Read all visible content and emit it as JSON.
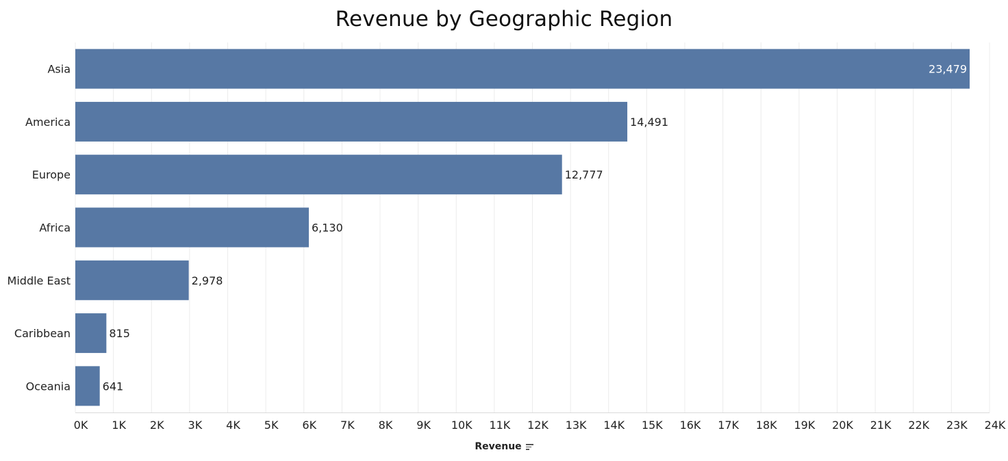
{
  "chart_data": {
    "type": "bar",
    "orientation": "horizontal",
    "title": "Revenue by Geographic Region",
    "xlabel": "Revenue",
    "ylabel": "",
    "categories": [
      "Asia",
      "America",
      "Europe",
      "Africa",
      "Middle East",
      "Caribbean",
      "Oceania"
    ],
    "values": [
      23479,
      14491,
      12777,
      6130,
      2978,
      815,
      641
    ],
    "value_labels": [
      "23,479",
      "14,491",
      "12,777",
      "6,130",
      "2,978",
      "815",
      "641"
    ],
    "xlim": [
      0,
      24000
    ],
    "x_ticks": [
      0,
      1000,
      2000,
      3000,
      4000,
      5000,
      6000,
      7000,
      8000,
      9000,
      10000,
      11000,
      12000,
      13000,
      14000,
      15000,
      16000,
      17000,
      18000,
      19000,
      20000,
      21000,
      22000,
      23000,
      24000
    ],
    "x_tick_labels": [
      "0K",
      "1K",
      "2K",
      "3K",
      "4K",
      "5K",
      "6K",
      "7K",
      "8K",
      "9K",
      "10K",
      "11K",
      "12K",
      "13K",
      "14K",
      "15K",
      "16K",
      "17K",
      "18K",
      "19K",
      "20K",
      "21K",
      "22K",
      "23K",
      "24K"
    ],
    "grid": true,
    "legend": "none",
    "sort": "descending",
    "sort_icon": "sort-descending-icon",
    "colors": {
      "bar": "#5778a4",
      "gridline": "#ececec",
      "axis_line": "#d9d9d9",
      "text": "#222222",
      "inside_label": "#ffffff"
    }
  }
}
